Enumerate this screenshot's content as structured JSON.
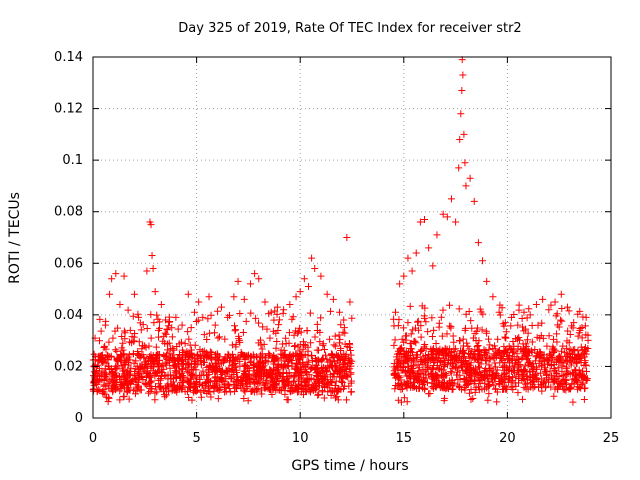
{
  "chart_data": {
    "type": "scatter",
    "title": "Day 325 of 2019, Rate Of TEC Index for receiver str2",
    "xlabel": "GPS time / hours",
    "ylabel": "ROTI / TECUs",
    "xlim": [
      0,
      25
    ],
    "ylim": [
      0,
      0.14
    ],
    "xticks": [
      0,
      5,
      10,
      15,
      20,
      25
    ],
    "xtick_labels": [
      "0",
      "5",
      "10",
      "15",
      "20",
      "25"
    ],
    "yticks": [
      0,
      0.02,
      0.04,
      0.06,
      0.08,
      0.1,
      0.12,
      0.14
    ],
    "ytick_labels": [
      "0",
      "0.02",
      "0.04",
      "0.06",
      "0.08",
      "0.1",
      "0.12",
      "0.14"
    ],
    "grid": true,
    "marker": "+",
    "color": "#ff0000",
    "series": [
      {
        "name": "ROTI",
        "points": [
          [
            0.1,
            0.031
          ],
          [
            0.3,
            0.024
          ],
          [
            0.6,
            0.036
          ],
          [
            0.8,
            0.048
          ],
          [
            0.9,
            0.054
          ],
          [
            1.1,
            0.056
          ],
          [
            1.3,
            0.044
          ],
          [
            1.5,
            0.055
          ],
          [
            1.8,
            0.034
          ],
          [
            2.0,
            0.048
          ],
          [
            2.2,
            0.039
          ],
          [
            2.4,
            0.028
          ],
          [
            2.6,
            0.057
          ],
          [
            2.75,
            0.076
          ],
          [
            2.8,
            0.075
          ],
          [
            2.85,
            0.063
          ],
          [
            2.9,
            0.058
          ],
          [
            3.0,
            0.049
          ],
          [
            3.3,
            0.044
          ],
          [
            3.5,
            0.038
          ],
          [
            3.8,
            0.035
          ],
          [
            4.0,
            0.039
          ],
          [
            4.3,
            0.036
          ],
          [
            4.6,
            0.048
          ],
          [
            4.9,
            0.041
          ],
          [
            5.1,
            0.045
          ],
          [
            5.3,
            0.039
          ],
          [
            5.6,
            0.047
          ],
          [
            5.9,
            0.036
          ],
          [
            6.2,
            0.043
          ],
          [
            6.5,
            0.039
          ],
          [
            6.8,
            0.047
          ],
          [
            7.0,
            0.053
          ],
          [
            7.3,
            0.046
          ],
          [
            7.6,
            0.052
          ],
          [
            7.8,
            0.056
          ],
          [
            8.0,
            0.054
          ],
          [
            8.3,
            0.045
          ],
          [
            8.6,
            0.041
          ],
          [
            8.9,
            0.043
          ],
          [
            9.2,
            0.042
          ],
          [
            9.5,
            0.044
          ],
          [
            9.8,
            0.047
          ],
          [
            10.0,
            0.049
          ],
          [
            10.2,
            0.054
          ],
          [
            10.4,
            0.051
          ],
          [
            10.55,
            0.062
          ],
          [
            10.7,
            0.058
          ],
          [
            11.0,
            0.055
          ],
          [
            11.3,
            0.048
          ],
          [
            11.6,
            0.046
          ],
          [
            11.9,
            0.041
          ],
          [
            12.1,
            0.038
          ],
          [
            12.25,
            0.07
          ],
          [
            12.4,
            0.045
          ],
          [
            14.6,
            0.041
          ],
          [
            14.8,
            0.052
          ],
          [
            15.0,
            0.055
          ],
          [
            15.2,
            0.062
          ],
          [
            15.4,
            0.057
          ],
          [
            15.6,
            0.064
          ],
          [
            15.8,
            0.076
          ],
          [
            16.0,
            0.077
          ],
          [
            16.2,
            0.066
          ],
          [
            16.4,
            0.059
          ],
          [
            16.6,
            0.071
          ],
          [
            16.9,
            0.079
          ],
          [
            17.1,
            0.078
          ],
          [
            17.3,
            0.085
          ],
          [
            17.5,
            0.076
          ],
          [
            17.65,
            0.097
          ],
          [
            17.7,
            0.108
          ],
          [
            17.75,
            0.118
          ],
          [
            17.8,
            0.127
          ],
          [
            17.82,
            0.139
          ],
          [
            17.85,
            0.133
          ],
          [
            17.9,
            0.11
          ],
          [
            17.95,
            0.099
          ],
          [
            18.0,
            0.09
          ],
          [
            18.2,
            0.093
          ],
          [
            18.4,
            0.084
          ],
          [
            18.6,
            0.068
          ],
          [
            18.8,
            0.061
          ],
          [
            19.0,
            0.053
          ],
          [
            19.3,
            0.047
          ],
          [
            19.6,
            0.041
          ],
          [
            19.9,
            0.037
          ],
          [
            20.2,
            0.039
          ],
          [
            20.5,
            0.036
          ],
          [
            20.8,
            0.041
          ],
          [
            21.1,
            0.04
          ],
          [
            21.4,
            0.044
          ],
          [
            21.7,
            0.046
          ],
          [
            22.0,
            0.042
          ],
          [
            22.3,
            0.045
          ],
          [
            22.6,
            0.048
          ],
          [
            22.9,
            0.043
          ],
          [
            23.2,
            0.037
          ],
          [
            23.5,
            0.034
          ],
          [
            23.8,
            0.039
          ]
        ]
      }
    ],
    "bands": [
      {
        "x_start": 0.0,
        "x_end": 12.5,
        "y_floor": 0.006,
        "y_core_low": 0.01,
        "y_core_high": 0.025,
        "y_upper": 0.034
      },
      {
        "x_start": 14.5,
        "x_end": 23.9,
        "y_floor": 0.006,
        "y_core_low": 0.011,
        "y_core_high": 0.027,
        "y_upper": 0.036
      }
    ]
  }
}
